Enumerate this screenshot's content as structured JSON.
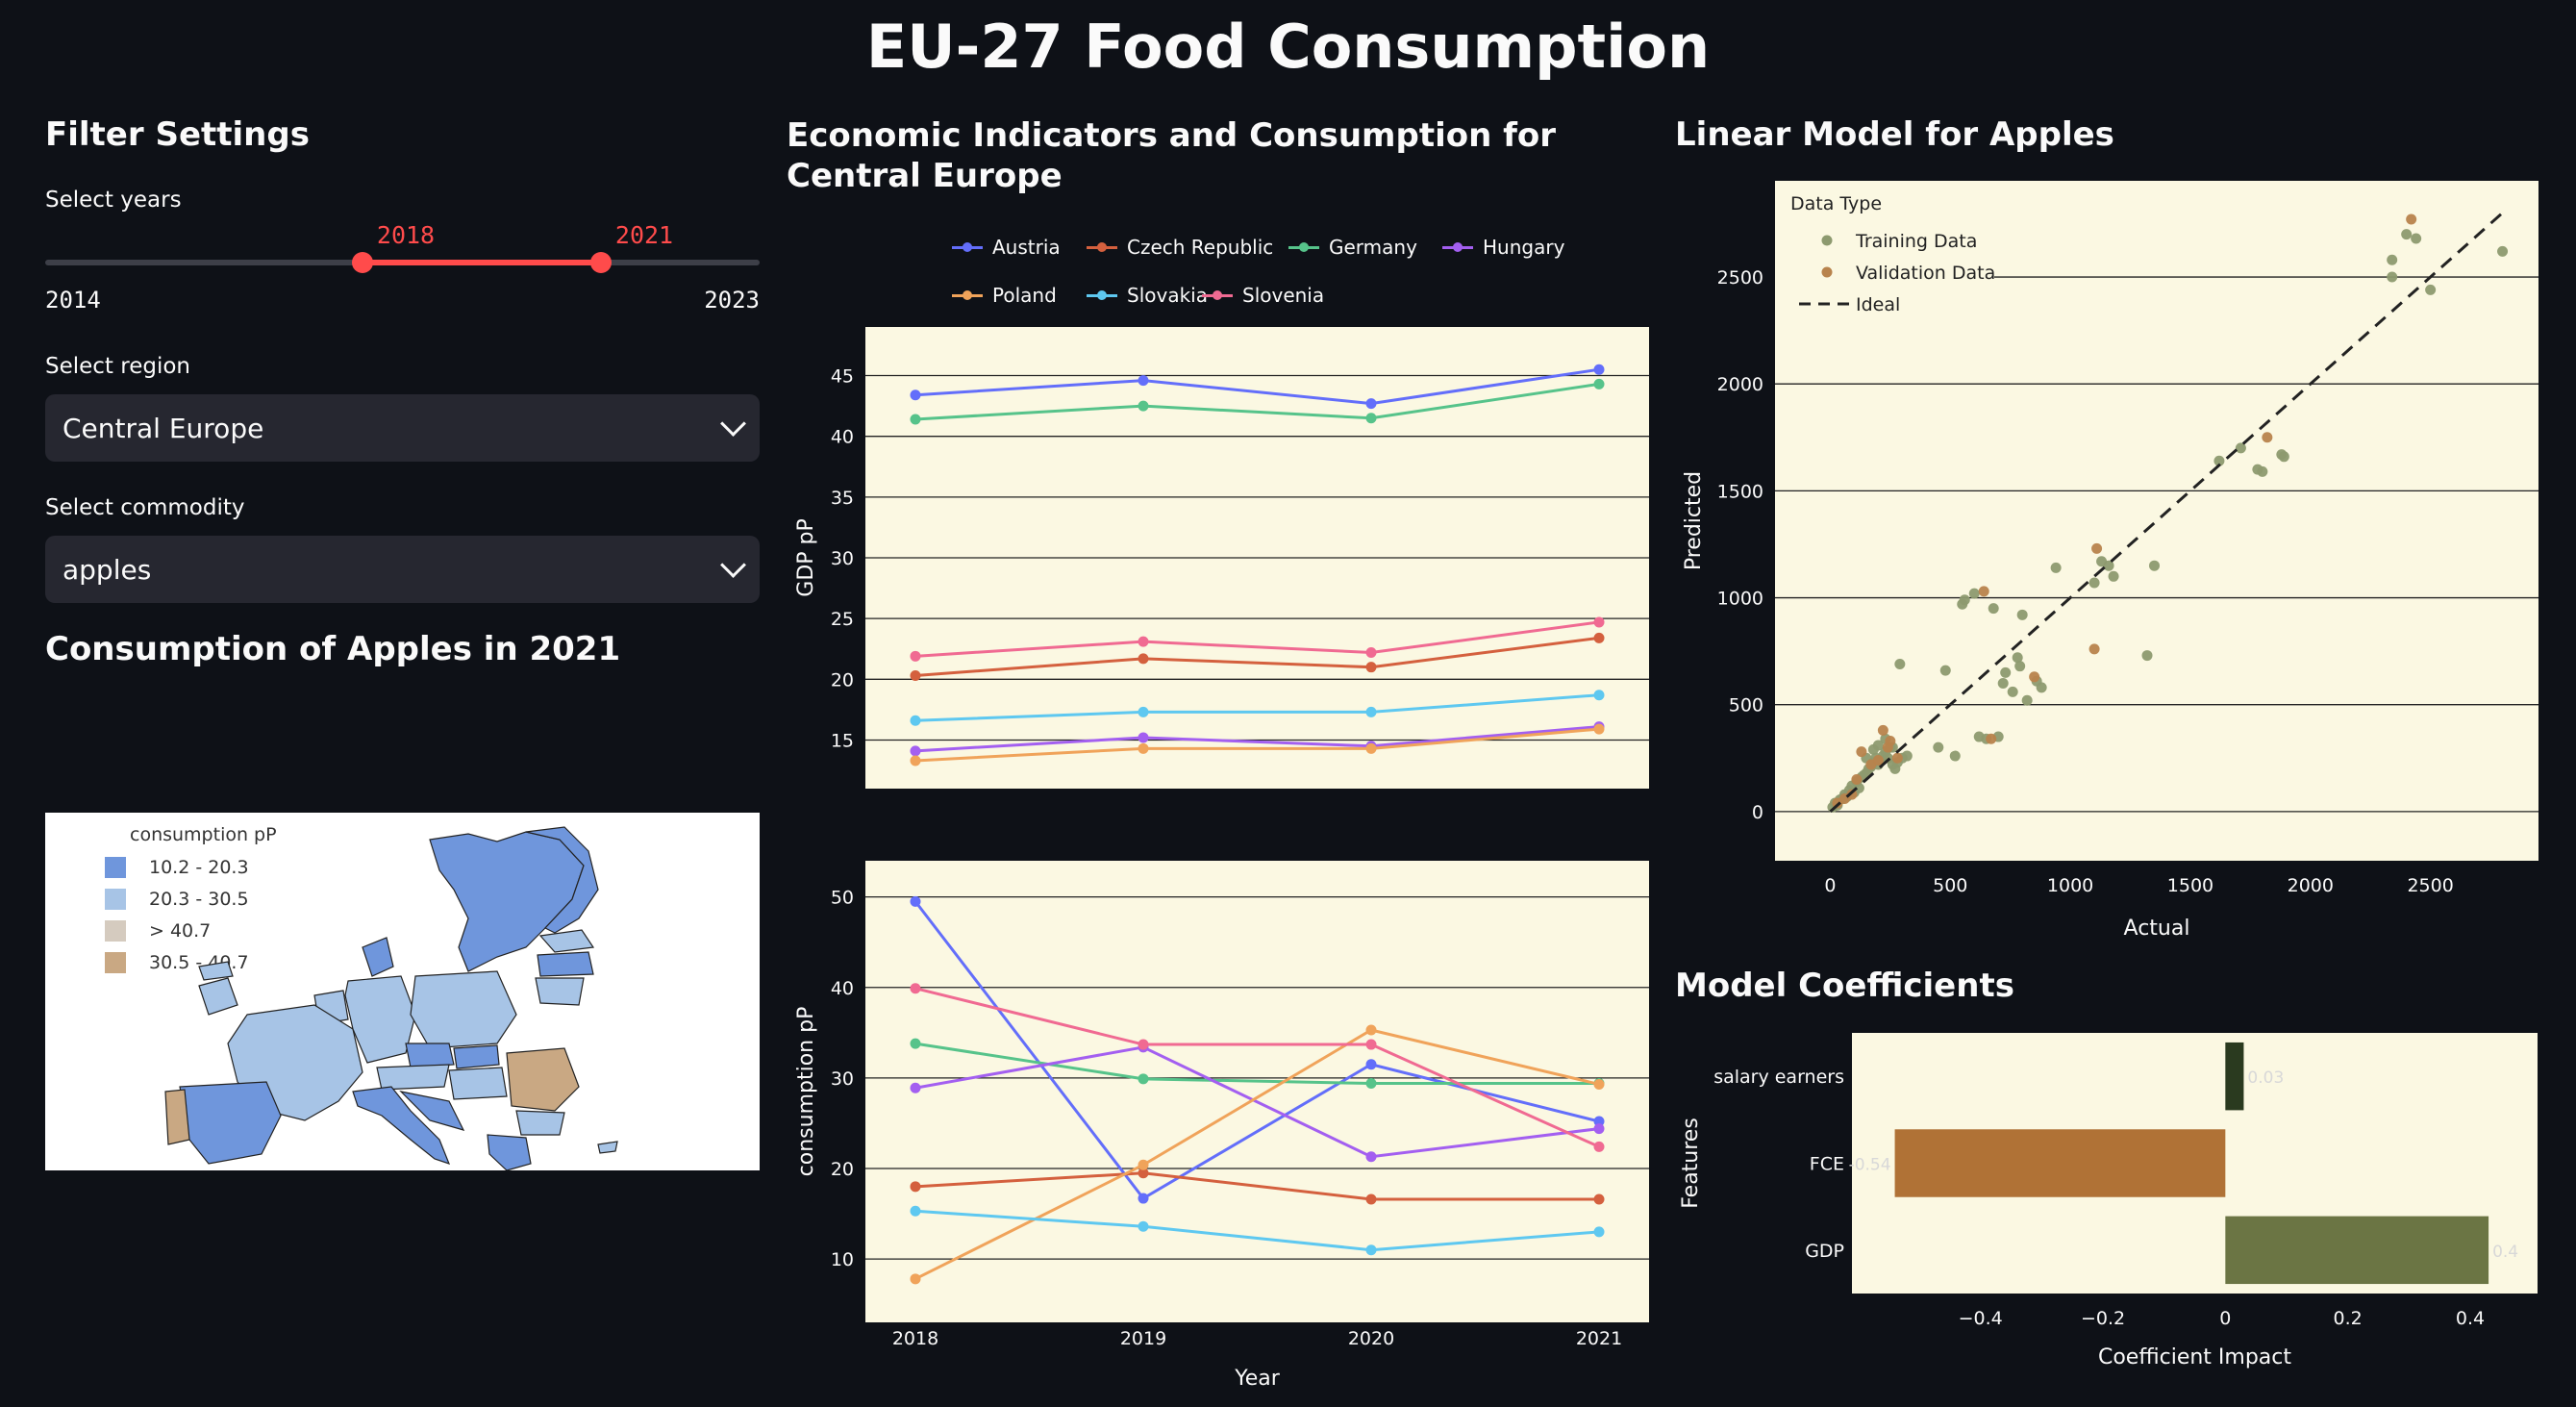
{
  "title": "EU-27 Food Consumption",
  "sidebar": {
    "heading": "Filter Settings",
    "years_label": "Select years",
    "slider": {
      "min": 2014,
      "max": 2023,
      "low": 2018,
      "high": 2021,
      "min_label": "2014",
      "max_label": "2023",
      "low_label": "2018",
      "high_label": "2021"
    },
    "region_label": "Select region",
    "region_value": "Central Europe",
    "commodity_label": "Select commodity",
    "commodity_value": "apples"
  },
  "map_section": {
    "heading": "Consumption of Apples in 2021",
    "legend_title": "consumption pP",
    "legend": [
      {
        "label": "10.2 - 20.3",
        "color": "#6f96dc"
      },
      {
        "label": "20.3 - 30.5",
        "color": "#a7c4e6"
      },
      {
        "label": "> 40.7",
        "color": "#d5cbbf"
      },
      {
        "label": "30.5 - 40.7",
        "color": "#c9a883"
      }
    ]
  },
  "middle": {
    "heading": "Economic Indicators and Consumption for Central Europe",
    "series_colors": {
      "Austria": "#636efa",
      "Czech Republic": "#d4603e",
      "Germany": "#56c38a",
      "Hungary": "#a35ff0",
      "Poland": "#f0a35a",
      "Slovakia": "#5ec8f0",
      "Slovenia": "#f06a92"
    }
  },
  "right": {
    "model_heading": "Linear Model for Apples",
    "coef_heading": "Model Coefficients"
  },
  "chart_data": [
    {
      "type": "line",
      "ylabel": "GDP pP",
      "x": [
        2018,
        2019,
        2020,
        2021
      ],
      "ylim": [
        11,
        49
      ],
      "yticks": [
        15,
        20,
        25,
        30,
        35,
        40,
        45
      ],
      "series": [
        {
          "name": "Austria",
          "values": [
            43.4,
            44.6,
            42.7,
            45.5
          ]
        },
        {
          "name": "Czech Republic",
          "values": [
            20.3,
            21.7,
            21.0,
            23.4
          ]
        },
        {
          "name": "Germany",
          "values": [
            41.4,
            42.5,
            41.5,
            44.3
          ]
        },
        {
          "name": "Hungary",
          "values": [
            14.1,
            15.2,
            14.5,
            16.1
          ]
        },
        {
          "name": "Poland",
          "values": [
            13.3,
            14.3,
            14.3,
            15.9
          ]
        },
        {
          "name": "Slovakia",
          "values": [
            16.6,
            17.3,
            17.3,
            18.7
          ]
        },
        {
          "name": "Slovenia",
          "values": [
            21.9,
            23.1,
            22.2,
            24.7
          ]
        }
      ]
    },
    {
      "type": "line",
      "ylabel": "consumption pP",
      "xlabel": "Year",
      "x": [
        2018,
        2019,
        2020,
        2021
      ],
      "xticks": [
        "2018",
        "2019",
        "2020",
        "2021"
      ],
      "ylim": [
        3,
        54
      ],
      "yticks": [
        10,
        20,
        30,
        40,
        50
      ],
      "series": [
        {
          "name": "Austria",
          "values": [
            49.5,
            16.7,
            31.5,
            25.2
          ]
        },
        {
          "name": "Czech Republic",
          "values": [
            18.0,
            19.5,
            16.6,
            16.6
          ]
        },
        {
          "name": "Germany",
          "values": [
            33.8,
            29.9,
            29.4,
            29.4
          ]
        },
        {
          "name": "Hungary",
          "values": [
            28.9,
            33.4,
            21.3,
            24.4
          ]
        },
        {
          "name": "Poland",
          "values": [
            7.8,
            20.4,
            35.3,
            29.3
          ]
        },
        {
          "name": "Slovakia",
          "values": [
            15.3,
            13.6,
            11.0,
            13.0
          ]
        },
        {
          "name": "Slovenia",
          "values": [
            39.9,
            33.7,
            33.7,
            22.4
          ]
        }
      ]
    },
    {
      "type": "scatter",
      "xlabel": "Actual",
      "ylabel": "Predicted",
      "legend_title": "Data Type",
      "legend": [
        "Training Data",
        "Validation Data",
        "Ideal"
      ],
      "xlim": [
        -230,
        2950
      ],
      "ylim": [
        -230,
        2950
      ],
      "xticks": [
        0,
        500,
        1000,
        1500,
        2000,
        2500
      ],
      "yticks": [
        0,
        500,
        1000,
        1500,
        2000,
        2500
      ],
      "ideal": [
        [
          0,
          0
        ],
        [
          2800,
          2800
        ]
      ],
      "series": [
        {
          "name": "Training Data",
          "color": "#8d9a6f",
          "points": [
            [
              10,
              20
            ],
            [
              20,
              40
            ],
            [
              30,
              30
            ],
            [
              40,
              55
            ],
            [
              50,
              60
            ],
            [
              60,
              80
            ],
            [
              70,
              70
            ],
            [
              80,
              100
            ],
            [
              90,
              120
            ],
            [
              100,
              90
            ],
            [
              110,
              140
            ],
            [
              120,
              110
            ],
            [
              130,
              160
            ],
            [
              140,
              170
            ],
            [
              150,
              180
            ],
            [
              160,
              200
            ],
            [
              170,
              210
            ],
            [
              180,
              230
            ],
            [
              190,
              250
            ],
            [
              200,
              220
            ],
            [
              210,
              240
            ],
            [
              220,
              260
            ],
            [
              230,
              280
            ],
            [
              240,
              250
            ],
            [
              250,
              300
            ],
            [
              260,
              220
            ],
            [
              270,
              200
            ],
            [
              280,
              230
            ],
            [
              300,
              250
            ],
            [
              320,
              260
            ],
            [
              150,
              250
            ],
            [
              180,
              290
            ],
            [
              200,
              310
            ],
            [
              230,
              340
            ],
            [
              260,
              300
            ],
            [
              290,
              690
            ],
            [
              450,
              300
            ],
            [
              480,
              660
            ],
            [
              520,
              260
            ],
            [
              550,
              970
            ],
            [
              560,
              990
            ],
            [
              600,
              1020
            ],
            [
              620,
              350
            ],
            [
              650,
              340
            ],
            [
              680,
              950
            ],
            [
              700,
              350
            ],
            [
              720,
              600
            ],
            [
              730,
              650
            ],
            [
              760,
              560
            ],
            [
              780,
              720
            ],
            [
              790,
              680
            ],
            [
              800,
              920
            ],
            [
              820,
              520
            ],
            [
              860,
              610
            ],
            [
              880,
              580
            ],
            [
              940,
              1140
            ],
            [
              1100,
              1070
            ],
            [
              1130,
              1170
            ],
            [
              1160,
              1150
            ],
            [
              1180,
              1100
            ],
            [
              1350,
              1150
            ],
            [
              1320,
              730
            ],
            [
              1620,
              1640
            ],
            [
              1710,
              1700
            ],
            [
              1780,
              1600
            ],
            [
              1800,
              1590
            ],
            [
              1880,
              1670
            ],
            [
              1890,
              1660
            ],
            [
              2340,
              2580
            ],
            [
              2340,
              2500
            ],
            [
              2400,
              2700
            ],
            [
              2440,
              2680
            ],
            [
              2500,
              2440
            ],
            [
              2800,
              2620
            ]
          ]
        },
        {
          "name": "Validation Data",
          "color": "#b8834c",
          "points": [
            [
              30,
              40
            ],
            [
              60,
              60
            ],
            [
              90,
              80
            ],
            [
              110,
              150
            ],
            [
              130,
              280
            ],
            [
              170,
              220
            ],
            [
              200,
              240
            ],
            [
              220,
              380
            ],
            [
              240,
              300
            ],
            [
              250,
              330
            ],
            [
              280,
              250
            ],
            [
              640,
              1030
            ],
            [
              670,
              340
            ],
            [
              850,
              630
            ],
            [
              1100,
              760
            ],
            [
              1110,
              1230
            ],
            [
              1820,
              1750
            ],
            [
              2420,
              2770
            ]
          ]
        }
      ]
    },
    {
      "type": "bar",
      "orientation": "horizontal",
      "xlabel": "Coefficient Impact",
      "ylabel": "Features",
      "categories": [
        "salary earners",
        "FCE",
        "GDP"
      ],
      "values": [
        0.03,
        -0.54,
        0.43
      ],
      "value_labels": [
        "0.03",
        "-0.54",
        "0.4"
      ],
      "colors": [
        "#2a3a1f",
        "#b07236",
        "#6b7544"
      ],
      "xlim": [
        -0.61,
        0.51
      ],
      "xticks": [
        -0.4,
        -0.2,
        0,
        0.2,
        0.4
      ],
      "xtick_labels": [
        "−0.4",
        "−0.2",
        "0",
        "0.2",
        "0.4"
      ]
    }
  ]
}
